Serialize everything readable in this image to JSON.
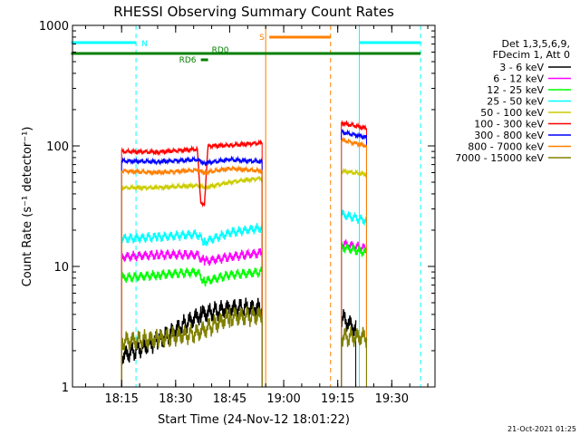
{
  "chart_data": {
    "type": "line",
    "title": "RHESSI Observing Summary Count Rates",
    "xlabel": "Start Time (24-Nov-12 18:01:22)",
    "ylabel": "Count Rate (s⁻¹ detector⁻¹)",
    "y_scale": "log",
    "ylim": [
      1,
      1000
    ],
    "xlim": [
      "18:01:22",
      "19:42:00"
    ],
    "x_ticks": [
      "18:15",
      "18:30",
      "18:45",
      "19:00",
      "19:15",
      "19:30"
    ],
    "y_ticks": [
      "1",
      "10",
      "100",
      "1000"
    ],
    "legend_header": [
      "Det 1,3,5,6,9,",
      "FDecim 1, Att 0"
    ],
    "legend_position": "right",
    "timestamp": "21-Oct-2021 01:25",
    "flags": [
      {
        "label": "N",
        "color": "#00ffff",
        "segments": [
          [
            "18:01",
            "18:19"
          ],
          [
            "19:21",
            "19:38"
          ]
        ]
      },
      {
        "label": "S",
        "color": "#ff8000",
        "segments": [
          [
            "18:56",
            "19:13"
          ]
        ]
      },
      {
        "label": "RD0",
        "color": "#008000",
        "segments": [
          [
            "18:01",
            "19:38"
          ]
        ]
      },
      {
        "label": "RD6",
        "color": "#008000",
        "segments": [
          [
            "18:37",
            "18:39"
          ]
        ]
      }
    ],
    "vlines": [
      {
        "time": "18:19",
        "color": "#00ffff",
        "style": "dashed"
      },
      {
        "time": "18:55",
        "color": "#ff8000",
        "style": "solid"
      },
      {
        "time": "19:13",
        "color": "#ff8000",
        "style": "dashed"
      },
      {
        "time": "19:21",
        "color": "#00ffff",
        "style": "solid"
      },
      {
        "time": "19:38",
        "color": "#00ffff",
        "style": "dashed"
      }
    ],
    "series": [
      {
        "name": "3 - 6 keV",
        "color": "#000000",
        "segments": [
          [
            [
              "18:15",
              1.8
            ],
            [
              "18:25",
              2.4
            ],
            [
              "18:37",
              4.0
            ],
            [
              "18:45",
              4.5
            ],
            [
              "18:54",
              4.5
            ]
          ],
          [
            [
              "19:16",
              3.8
            ],
            [
              "19:20",
              3.0
            ]
          ]
        ]
      },
      {
        "name": "6 - 12 keV",
        "color": "#ff00ff",
        "segments": [
          [
            [
              "18:15",
              12
            ],
            [
              "18:25",
              12.5
            ],
            [
              "18:36",
              12.5
            ],
            [
              "18:38",
              11
            ],
            [
              "18:45",
              12
            ],
            [
              "18:54",
              13
            ]
          ],
          [
            [
              "19:16",
              15.5
            ],
            [
              "19:23",
              14
            ]
          ]
        ]
      },
      {
        "name": "12 - 25 keV",
        "color": "#00ff00",
        "segments": [
          [
            [
              "18:15",
              8
            ],
            [
              "18:25",
              8.5
            ],
            [
              "18:36",
              9
            ],
            [
              "18:38",
              7.5
            ],
            [
              "18:45",
              8.5
            ],
            [
              "18:54",
              9
            ]
          ],
          [
            [
              "19:16",
              14.5
            ],
            [
              "19:23",
              13
            ]
          ]
        ]
      },
      {
        "name": "25 - 50 keV",
        "color": "#00ffff",
        "segments": [
          [
            [
              "18:15",
              17
            ],
            [
              "18:25",
              17.5
            ],
            [
              "18:36",
              18.5
            ],
            [
              "18:38",
              16
            ],
            [
              "18:45",
              19
            ],
            [
              "18:54",
              21
            ]
          ],
          [
            [
              "19:16",
              27
            ],
            [
              "19:23",
              24
            ]
          ]
        ]
      },
      {
        "name": "50 - 100 keV",
        "color": "#cccc00",
        "segments": [
          [
            [
              "18:15",
              45
            ],
            [
              "18:25",
              45
            ],
            [
              "18:36",
              47
            ],
            [
              "18:38",
              45
            ],
            [
              "18:45",
              50
            ],
            [
              "18:54",
              54
            ]
          ],
          [
            [
              "19:16",
              62
            ],
            [
              "19:23",
              58
            ]
          ]
        ]
      },
      {
        "name": "100 - 300 keV",
        "color": "#ff0000",
        "segments": [
          [
            [
              "18:15",
              90
            ],
            [
              "18:25",
              89
            ],
            [
              "18:36",
              94
            ],
            [
              "18:37",
              34
            ],
            [
              "18:38",
              33
            ],
            [
              "18:39",
              100
            ],
            [
              "18:45",
              101
            ],
            [
              "18:54",
              106
            ]
          ],
          [
            [
              "19:16",
              155
            ],
            [
              "19:23",
              140
            ]
          ]
        ]
      },
      {
        "name": "300 - 800 keV",
        "color": "#0000ff",
        "segments": [
          [
            [
              "18:15",
              75
            ],
            [
              "18:25",
              74
            ],
            [
              "18:36",
              77
            ],
            [
              "18:38",
              72
            ],
            [
              "18:45",
              77
            ],
            [
              "18:54",
              74
            ]
          ],
          [
            [
              "19:16",
              130
            ],
            [
              "19:23",
              118
            ]
          ]
        ]
      },
      {
        "name": "800 - 7000 keV",
        "color": "#ff8000",
        "segments": [
          [
            [
              "18:15",
              62
            ],
            [
              "18:25",
              60
            ],
            [
              "18:36",
              63
            ],
            [
              "18:38",
              60
            ],
            [
              "18:45",
              65
            ],
            [
              "18:54",
              62
            ]
          ],
          [
            [
              "19:16",
              112
            ],
            [
              "19:23",
              100
            ]
          ]
        ]
      },
      {
        "name": "7000 - 15000 keV",
        "color": "#808000",
        "segments": [
          [
            [
              "18:15",
              2.4
            ],
            [
              "18:25",
              2.5
            ],
            [
              "18:36",
              2.8
            ],
            [
              "18:45",
              3.8
            ],
            [
              "18:54",
              3.9
            ]
          ],
          [
            [
              "19:16",
              2.6
            ],
            [
              "19:23",
              2.6
            ]
          ]
        ]
      }
    ]
  }
}
